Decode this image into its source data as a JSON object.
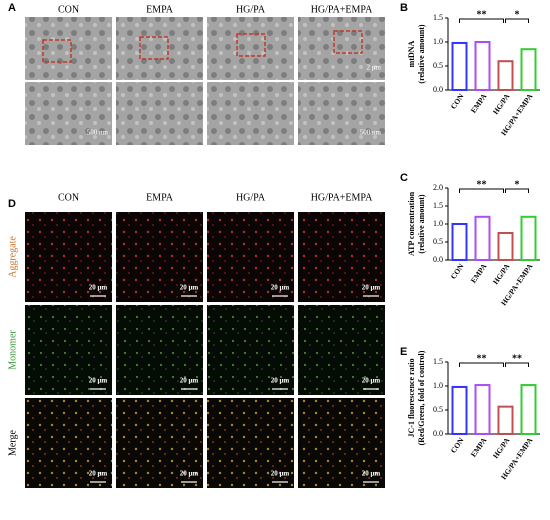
{
  "panel_a": {
    "label": "A",
    "columns": [
      "CON",
      "EMPA",
      "HG/PA",
      "HG/PA+EMPA"
    ],
    "scale_bar_top": "2 μm",
    "scale_bar_bottom": "500 nm"
  },
  "panel_d": {
    "label": "D",
    "columns": [
      "CON",
      "EMPA",
      "HG/PA",
      "HG/PA+EMPA"
    ],
    "rows": [
      "Aggregate",
      "Monomer",
      "Merge"
    ],
    "scale_bar": "20 μm"
  },
  "chart_data": [
    {
      "type": "bar",
      "panel": "B",
      "ylabel": [
        "mtDNA",
        "(relative amount)"
      ],
      "categories": [
        "CON",
        "EMPA",
        "HG/PA",
        "HG/PA+EMPA"
      ],
      "values": [
        0.98,
        1.0,
        0.6,
        0.85
      ],
      "colors": [
        "#3333ff",
        "#b04cf0",
        "#c0504d",
        "#33cc33"
      ],
      "ylim": [
        0,
        1.5
      ],
      "yticks": [
        {
          "value": 0,
          "label": "0.0"
        },
        0.5,
        {
          "value": 1,
          "label": "1.0"
        },
        1.5
      ],
      "significance": [
        "**",
        "*"
      ]
    },
    {
      "type": "bar",
      "panel": "C",
      "ylabel": [
        "ATP concentration",
        "(relative amount)"
      ],
      "categories": [
        "CON",
        "EMPA",
        "HG/PA",
        "HG/PA+EMPA"
      ],
      "values": [
        1.0,
        1.2,
        0.75,
        1.2
      ],
      "colors": [
        "#3333ff",
        "#b04cf0",
        "#c0504d",
        "#33cc33"
      ],
      "ylim": [
        0,
        2
      ],
      "yticks": [
        {
          "value": 0,
          "label": "0.0"
        },
        0.5,
        {
          "value": 1,
          "label": "1.0"
        },
        1.5,
        {
          "value": 2,
          "label": "2.0"
        }
      ],
      "significance": [
        "**",
        "*"
      ]
    },
    {
      "type": "bar",
      "panel": "E",
      "ylabel": [
        "JC-1 fluorescence ratio",
        "(Red/Green, fold of control)"
      ],
      "categories": [
        "CON",
        "EMPA",
        "HG/PA",
        "HG/PA+EMPA"
      ],
      "values": [
        0.98,
        1.02,
        0.57,
        1.02
      ],
      "colors": [
        "#3333ff",
        "#b04cf0",
        "#c0504d",
        "#33cc33"
      ],
      "ylim": [
        0,
        1.5
      ],
      "yticks": [
        {
          "value": 0,
          "label": "0.0"
        },
        0.5,
        {
          "value": 1,
          "label": "1.0"
        },
        1.5
      ],
      "significance": [
        "**",
        "**"
      ]
    }
  ]
}
